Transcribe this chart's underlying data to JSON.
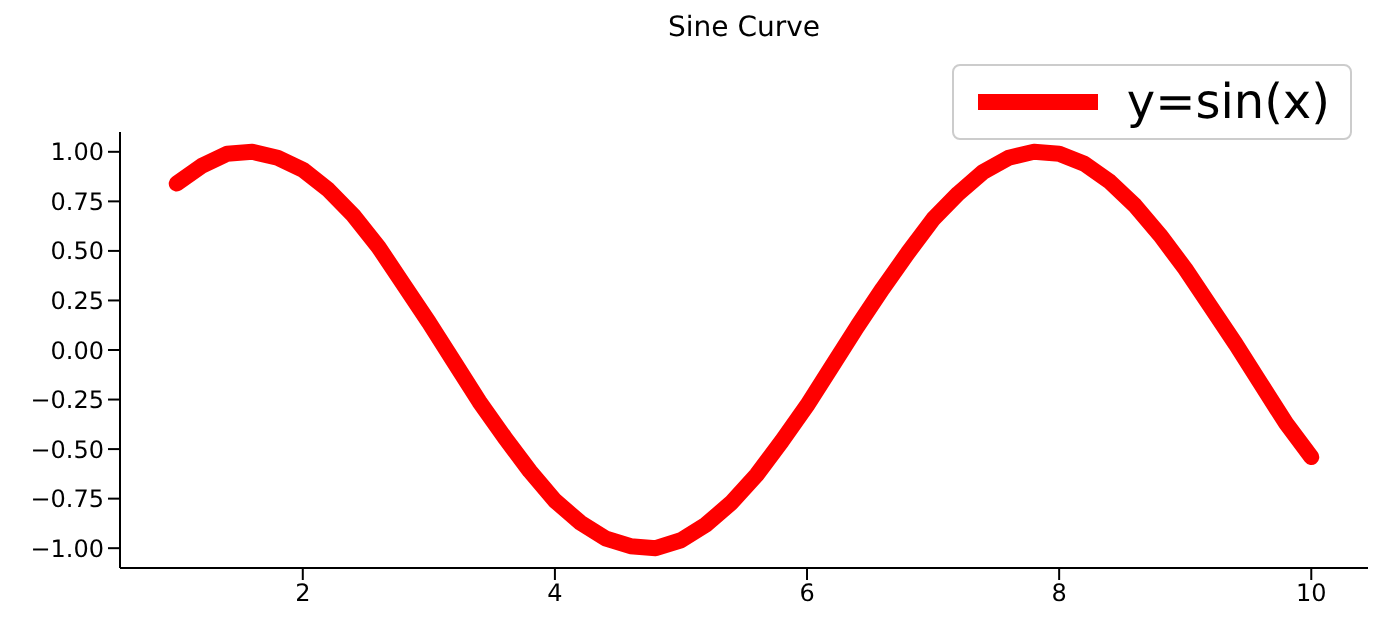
{
  "chart_data": {
    "type": "line",
    "title": "Sine Curve",
    "x": [
      1,
      1.2,
      1.4,
      1.6,
      1.8,
      2,
      2.2,
      2.4,
      2.6,
      2.8,
      3,
      3.2,
      3.4,
      3.6,
      3.8,
      4,
      4.2,
      4.4,
      4.6,
      4.8,
      5,
      5.2,
      5.4,
      5.6,
      5.8,
      6,
      6.2,
      6.4,
      6.6,
      6.8,
      7,
      7.2,
      7.4,
      7.6,
      7.8,
      8,
      8.2,
      8.4,
      8.6,
      8.8,
      9,
      9.2,
      9.4,
      9.6,
      9.8,
      10
    ],
    "series": [
      {
        "name": "y=sin(x)",
        "color": "#ff0000",
        "values": [
          0.84,
          0.93,
          0.99,
          1.0,
          0.97,
          0.91,
          0.81,
          0.68,
          0.52,
          0.33,
          0.14,
          -0.06,
          -0.26,
          -0.44,
          -0.61,
          -0.76,
          -0.87,
          -0.95,
          -0.99,
          -1.0,
          -0.96,
          -0.88,
          -0.77,
          -0.63,
          -0.46,
          -0.28,
          -0.08,
          0.12,
          0.31,
          0.49,
          0.66,
          0.79,
          0.9,
          0.97,
          1.0,
          0.99,
          0.94,
          0.85,
          0.73,
          0.58,
          0.41,
          0.22,
          0.03,
          -0.17,
          -0.37,
          -0.54
        ]
      }
    ],
    "xlim": [
      0.55,
      10.45
    ],
    "xticks": [
      2,
      4,
      6,
      8,
      10
    ],
    "ylim": [
      -1.1,
      1.1
    ],
    "yticks": [
      {
        "value": -1,
        "label": "−1.00"
      },
      {
        "value": -0.75,
        "label": "−0.75"
      },
      {
        "value": -0.5,
        "label": "−0.50"
      },
      {
        "value": -0.25,
        "label": "−0.25"
      },
      {
        "value": 0,
        "label": "0.00"
      },
      {
        "value": 0.25,
        "label": "0.25"
      },
      {
        "value": 0.5,
        "label": "0.50"
      },
      {
        "value": 0.75,
        "label": "0.75"
      },
      {
        "value": 1,
        "label": "1.00"
      }
    ],
    "legend": "top right",
    "marker": "none",
    "line_style": "solid",
    "grid": false
  }
}
